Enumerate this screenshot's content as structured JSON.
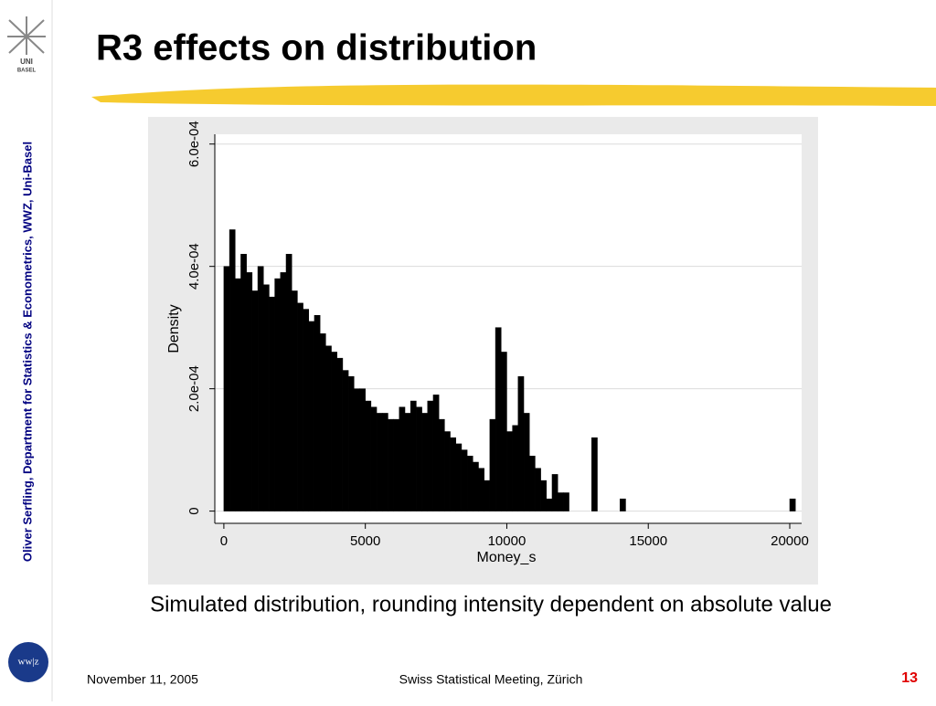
{
  "logo": {
    "line1": "UNI",
    "line2": "BASEL"
  },
  "sidebar": "Oliver Serfling, Department for Statistics & Econometrics, WWZ,  Uni-Basel",
  "title": "R3 effects on distribution",
  "chart_data": {
    "type": "histogram",
    "color": "#000000",
    "grid": true,
    "xlabel": "Money_s",
    "ylabel": "Density",
    "bins": [
      0,
      200,
      400,
      600,
      800,
      1000,
      1200,
      1400,
      1600,
      1800,
      2000,
      2200,
      2400,
      2600,
      2800,
      3000,
      3200,
      3400,
      3600,
      3800,
      4000,
      4200,
      4400,
      4600,
      4800,
      5000,
      5200,
      5400,
      5600,
      5800,
      6000,
      6200,
      6400,
      6600,
      6800,
      7000,
      7200,
      7400,
      7600,
      7800,
      8000,
      8200,
      8400,
      8600,
      8800,
      9000,
      9200,
      9400,
      9600,
      9800,
      10000,
      10200,
      10400,
      10600,
      10800,
      11000,
      11200,
      11400,
      11600,
      11800,
      12000,
      12200,
      12400,
      12600,
      12800,
      13000,
      13200,
      13400,
      13600,
      13800,
      14000,
      14200,
      14400,
      14600,
      14800,
      15000,
      15200,
      15400,
      15600,
      15800,
      16000,
      16200,
      16400,
      16600,
      16800,
      17000,
      17200,
      17400,
      17600,
      17800,
      18000,
      18200,
      18400,
      18600,
      18800,
      19000,
      19200,
      19400,
      19600,
      19800,
      20000,
      20200
    ],
    "values": [
      0.0004,
      0.00046,
      0.00038,
      0.00042,
      0.00039,
      0.00036,
      0.0004,
      0.00037,
      0.00035,
      0.00038,
      0.00039,
      0.00042,
      0.00036,
      0.00034,
      0.00033,
      0.00031,
      0.00032,
      0.00029,
      0.00027,
      0.00026,
      0.00025,
      0.00023,
      0.00022,
      0.0002,
      0.0002,
      0.00018,
      0.00017,
      0.00016,
      0.00016,
      0.00015,
      0.00015,
      0.00017,
      0.00016,
      0.00018,
      0.00017,
      0.00016,
      0.00018,
      0.00019,
      0.00015,
      0.00013,
      0.00012,
      0.00011,
      0.0001,
      9e-05,
      8e-05,
      7e-05,
      5e-05,
      0.00015,
      0.0003,
      0.00026,
      0.00013,
      0.00014,
      0.00022,
      0.00016,
      9e-05,
      7e-05,
      5e-05,
      2e-05,
      6e-05,
      3e-05,
      3e-05,
      0,
      0,
      0,
      0,
      0.00012,
      0,
      0,
      0,
      0,
      2e-05,
      0,
      0,
      0,
      0,
      0,
      0,
      0,
      0,
      0,
      0,
      0,
      0,
      0,
      0,
      0,
      0,
      0,
      0,
      0,
      0,
      0,
      0,
      0,
      0,
      0,
      0,
      0,
      0,
      0,
      2e-05
    ],
    "xlim": [
      -320,
      20420
    ],
    "xticks": [
      0,
      5000,
      10000,
      15000,
      20000
    ],
    "ylim": [
      -2e-05,
      0.000616
    ],
    "yticks": [
      0,
      {
        "value": 0.0002,
        "label": "2.0e-04"
      },
      {
        "value": 0.0004,
        "label": "4.0e-04"
      },
      {
        "value": 0.0006,
        "label": "6.0e-04"
      }
    ]
  },
  "caption": "Simulated distribution, rounding intensity dependent on absolute value",
  "badge": "ww|z",
  "footer": {
    "date": "November 11, 2005",
    "event": "Swiss Statistical Meeting, Zürich",
    "page": "13"
  }
}
